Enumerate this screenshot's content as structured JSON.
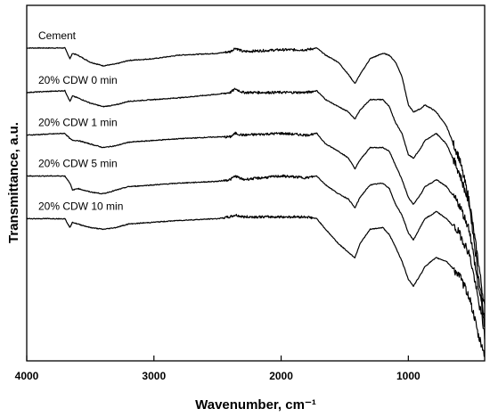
{
  "chart_data": {
    "type": "line",
    "title": "",
    "xlabel": "Wavenumber, cm⁻¹",
    "ylabel": "Transmittance, a.u.",
    "xlim": [
      4000,
      400
    ],
    "x_reversed": true,
    "y_ticks_shown": false,
    "grid": false,
    "legend": "labels above each curve, left",
    "x_ticks": [
      {
        "value": 4000,
        "label": "4000"
      },
      {
        "value": 3000,
        "label": "3000"
      },
      {
        "value": 2000,
        "label": "2000"
      },
      {
        "value": 1000,
        "label": "1000"
      }
    ],
    "ylim": [
      0,
      100
    ],
    "series": [
      {
        "name": "Cement",
        "x": [
          4000,
          3700,
          3660,
          3640,
          3600,
          3500,
          3400,
          3300,
          3200,
          3000,
          2800,
          2500,
          2400,
          2360,
          2300,
          2000,
          1800,
          1720,
          1650,
          1550,
          1470,
          1420,
          1380,
          1300,
          1200,
          1150,
          1100,
          1050,
          1000,
          960,
          900,
          870,
          820,
          780,
          700,
          600,
          520,
          480,
          450,
          420,
          400
        ],
        "y": [
          88,
          88,
          85,
          86.5,
          86,
          84,
          83,
          83.5,
          84.5,
          85,
          86,
          86.5,
          87,
          88,
          87,
          87.5,
          87.5,
          88,
          86,
          84,
          80.5,
          78,
          80.5,
          85,
          86.5,
          86,
          84,
          80,
          72,
          70,
          71,
          72,
          71,
          70,
          66,
          57,
          45,
          35,
          28,
          20,
          15
        ]
      },
      {
        "name": "20% CDW 0 min",
        "x": [
          4000,
          3700,
          3660,
          3640,
          3600,
          3500,
          3400,
          3300,
          3200,
          3000,
          2800,
          2500,
          2400,
          2360,
          2300,
          2000,
          1800,
          1720,
          1650,
          1550,
          1470,
          1420,
          1380,
          1300,
          1200,
          1150,
          1100,
          1050,
          1000,
          960,
          900,
          870,
          820,
          780,
          700,
          600,
          520,
          480,
          450,
          420,
          400
        ],
        "y": [
          75.5,
          76,
          73,
          74.5,
          74,
          72.5,
          71.5,
          72,
          73,
          73.5,
          74,
          75,
          75.5,
          76.5,
          75.5,
          75.5,
          75.5,
          76,
          73.5,
          71.5,
          70,
          68,
          70.5,
          73.5,
          73.5,
          71.5,
          67,
          64,
          58,
          57,
          60,
          62,
          63,
          64,
          61,
          53,
          44,
          33,
          24,
          17,
          11
        ]
      },
      {
        "name": "20% CDW 1 min",
        "x": [
          4000,
          3700,
          3660,
          3640,
          3600,
          3500,
          3400,
          3300,
          3200,
          3000,
          2800,
          2500,
          2400,
          2360,
          2300,
          2000,
          1800,
          1720,
          1650,
          1550,
          1470,
          1420,
          1380,
          1300,
          1200,
          1150,
          1100,
          1050,
          1000,
          960,
          900,
          870,
          820,
          780,
          700,
          600,
          520,
          480,
          450,
          420,
          400
        ],
        "y": [
          63.5,
          64,
          62.5,
          62,
          62,
          61,
          60,
          60.5,
          61.5,
          62,
          62.5,
          63,
          63,
          64,
          63.5,
          64,
          63.5,
          64,
          61,
          59,
          57,
          54,
          56.5,
          60,
          60,
          59,
          55,
          51,
          46,
          44,
          47,
          49,
          50,
          51,
          49,
          44,
          37,
          28,
          21,
          15,
          9
        ]
      },
      {
        "name": "20% CDW 5 min",
        "x": [
          4000,
          3700,
          3660,
          3640,
          3600,
          3500,
          3400,
          3300,
          3200,
          3000,
          2800,
          2500,
          2400,
          2360,
          2300,
          2000,
          1800,
          1720,
          1650,
          1550,
          1470,
          1420,
          1380,
          1300,
          1200,
          1150,
          1100,
          1050,
          1000,
          960,
          900,
          870,
          820,
          780,
          700,
          600,
          520,
          480,
          450,
          420,
          400
        ],
        "y": [
          52,
          52,
          50,
          48,
          48.5,
          47.5,
          47,
          48,
          49,
          49.5,
          50,
          50.5,
          51,
          52,
          51,
          52,
          51.5,
          52,
          49.5,
          47,
          45.5,
          43,
          46,
          49.5,
          50,
          48.5,
          44,
          41,
          36,
          34,
          38,
          40,
          41,
          42,
          40,
          36,
          30,
          23,
          17,
          12,
          7
        ]
      },
      {
        "name": "20% CDW 10 min",
        "x": [
          4000,
          3700,
          3660,
          3640,
          3600,
          3500,
          3400,
          3300,
          3200,
          3000,
          2800,
          2500,
          2400,
          2360,
          2300,
          2000,
          1800,
          1720,
          1650,
          1550,
          1470,
          1420,
          1380,
          1300,
          1200,
          1150,
          1100,
          1050,
          1000,
          960,
          900,
          870,
          820,
          780,
          700,
          600,
          520,
          480,
          450,
          420,
          400
        ],
        "y": [
          40,
          40,
          37.5,
          39,
          38.5,
          37.5,
          37,
          37.5,
          38.5,
          39,
          39.5,
          40,
          40.5,
          41,
          40.5,
          40.5,
          40.5,
          40,
          37,
          33,
          30.5,
          29,
          33,
          37,
          37.5,
          35.5,
          32,
          28,
          23,
          21,
          24.5,
          26.5,
          28,
          29,
          28,
          24,
          18,
          12,
          7,
          4,
          2
        ]
      }
    ]
  }
}
